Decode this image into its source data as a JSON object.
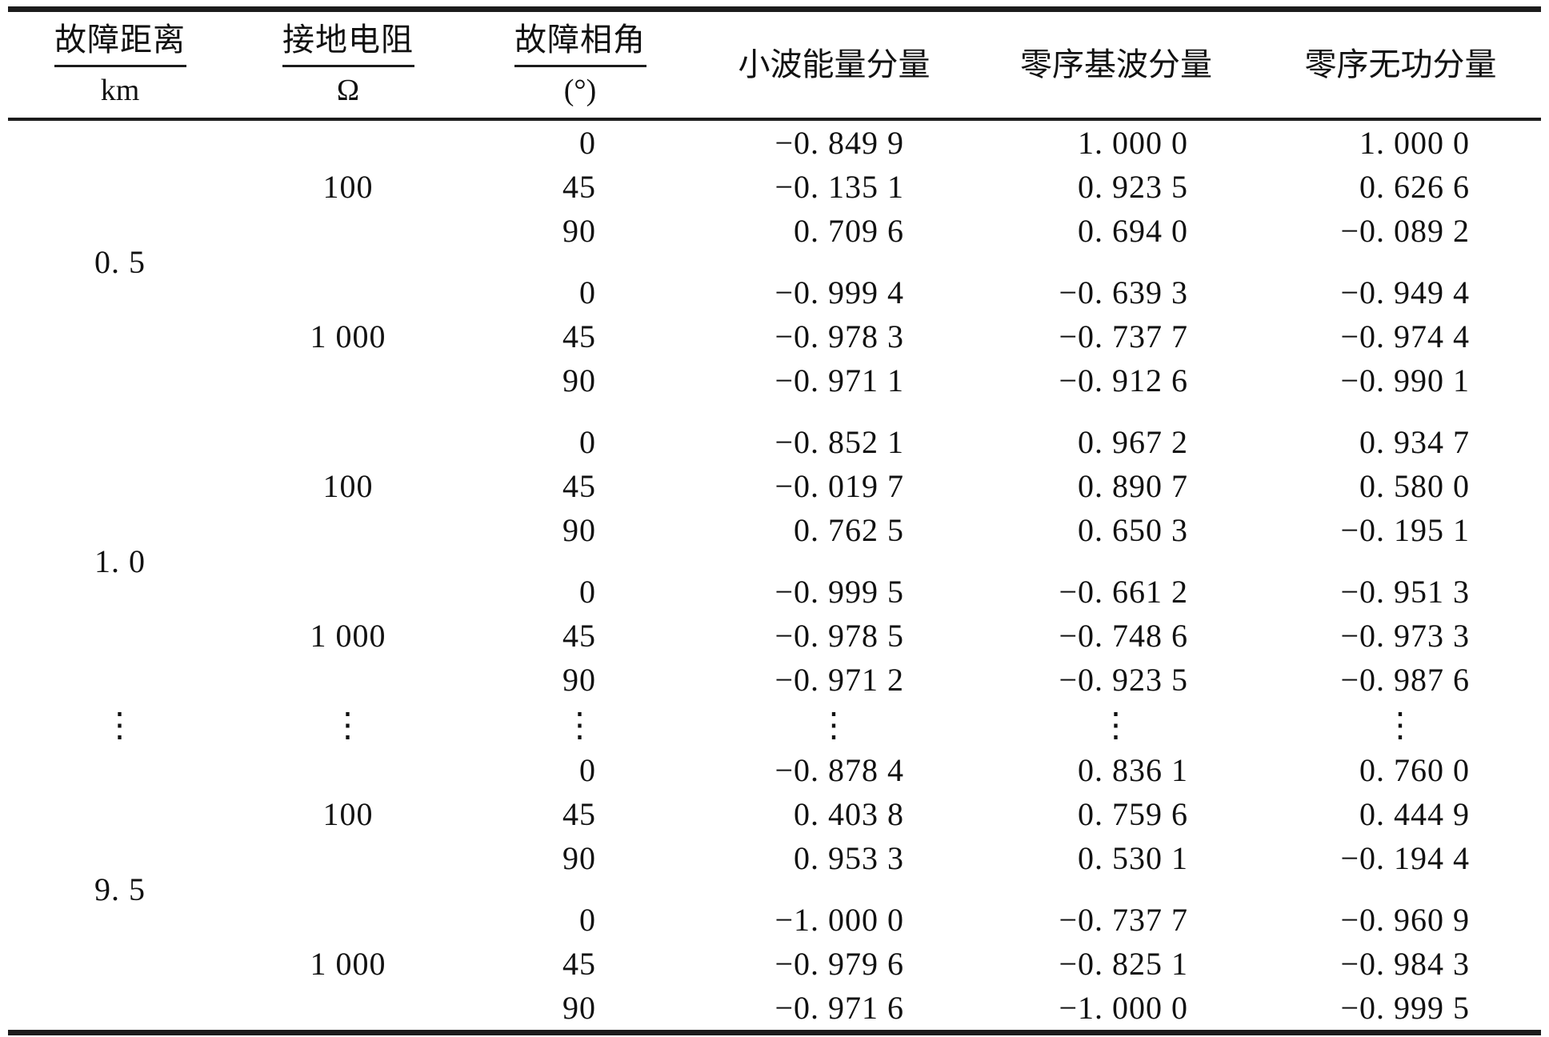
{
  "table": {
    "headers": [
      {
        "top": "故障距离",
        "unit": "km"
      },
      {
        "top": "接地电阻",
        "unit": "Ω"
      },
      {
        "top": "故障相角",
        "unit": "(°)"
      },
      {
        "label": "小波能量分量"
      },
      {
        "label": "零序基波分量"
      },
      {
        "label": "零序无功分量"
      }
    ],
    "distances": [
      "0. 5",
      "1. 0",
      "9. 5"
    ],
    "resistances": [
      "100",
      "1 000",
      "100",
      "1 000",
      "100",
      "1 000"
    ],
    "dots": "⋮",
    "rows": [
      {
        "angle": "0",
        "wavelet": "−0. 849 9",
        "fundamental": "1. 000 0",
        "reactive": "1. 000 0"
      },
      {
        "angle": "45",
        "wavelet": "−0. 135 1",
        "fundamental": "0. 923 5",
        "reactive": "0. 626 6"
      },
      {
        "angle": "90",
        "wavelet": "0. 709 6",
        "fundamental": "0. 694 0",
        "reactive": "−0. 089 2"
      },
      {
        "angle": "0",
        "wavelet": "−0. 999 4",
        "fundamental": "−0. 639 3",
        "reactive": "−0. 949 4"
      },
      {
        "angle": "45",
        "wavelet": "−0. 978 3",
        "fundamental": "−0. 737 7",
        "reactive": "−0. 974 4"
      },
      {
        "angle": "90",
        "wavelet": "−0. 971 1",
        "fundamental": "−0. 912 6",
        "reactive": "−0. 990 1"
      },
      {
        "angle": "0",
        "wavelet": "−0. 852 1",
        "fundamental": "0. 967 2",
        "reactive": "0. 934 7"
      },
      {
        "angle": "45",
        "wavelet": "−0. 019 7",
        "fundamental": "0. 890 7",
        "reactive": "0. 580 0"
      },
      {
        "angle": "90",
        "wavelet": "0. 762 5",
        "fundamental": "0. 650 3",
        "reactive": "−0. 195 1"
      },
      {
        "angle": "0",
        "wavelet": "−0. 999 5",
        "fundamental": "−0. 661 2",
        "reactive": "−0. 951 3"
      },
      {
        "angle": "45",
        "wavelet": "−0. 978 5",
        "fundamental": "−0. 748 6",
        "reactive": "−0. 973 3"
      },
      {
        "angle": "90",
        "wavelet": "−0. 971 2",
        "fundamental": "−0. 923 5",
        "reactive": "−0. 987 6"
      },
      {
        "angle": "0",
        "wavelet": "−0. 878 4",
        "fundamental": "0. 836 1",
        "reactive": "0. 760 0"
      },
      {
        "angle": "45",
        "wavelet": "0. 403 8",
        "fundamental": "0. 759 6",
        "reactive": "0. 444 9"
      },
      {
        "angle": "90",
        "wavelet": "0. 953 3",
        "fundamental": "0. 530 1",
        "reactive": "−0. 194 4"
      },
      {
        "angle": "0",
        "wavelet": "−1. 000 0",
        "fundamental": "−0. 737 7",
        "reactive": "−0. 960 9"
      },
      {
        "angle": "45",
        "wavelet": "−0. 979 6",
        "fundamental": "−0. 825 1",
        "reactive": "−0. 984 3"
      },
      {
        "angle": "90",
        "wavelet": "−0. 971 6",
        "fundamental": "−1. 000 0",
        "reactive": "−0. 999 5"
      }
    ]
  }
}
